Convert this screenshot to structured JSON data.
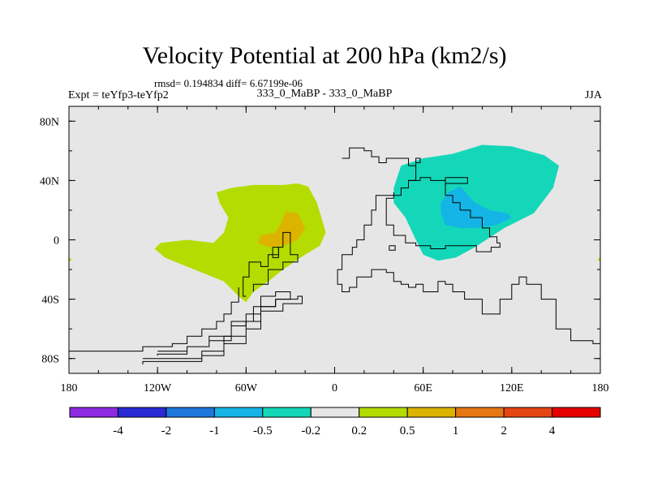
{
  "header": {
    "title": "Velocity Potential at 200 hPa (km2/s)",
    "stats": "rmsd= 0.194834 diff= 6.67199e-06",
    "expt": "Expt = teYfp3-teYfp2",
    "cases": "333_0_MaBP - 333_0_MaBP",
    "season": "JJA"
  },
  "colors": {
    "background": "#ffffff",
    "map_fill": "#e6e6e6",
    "coast": "#000000"
  },
  "chart_data": {
    "type": "heatmap",
    "title": "Velocity Potential at 200 hPa (km2/s)",
    "xlim": [
      -180,
      180
    ],
    "ylim": [
      -90,
      90
    ],
    "x_ticks": [
      {
        "value": -180,
        "label": "180"
      },
      {
        "value": -120,
        "label": "120W"
      },
      {
        "value": -60,
        "label": "60W"
      },
      {
        "value": 0,
        "label": "0"
      },
      {
        "value": 60,
        "label": "60E"
      },
      {
        "value": 120,
        "label": "120E"
      },
      {
        "value": 180,
        "label": "180"
      }
    ],
    "y_ticks": [
      {
        "value": 80,
        "label": "80N"
      },
      {
        "value": 40,
        "label": "40N"
      },
      {
        "value": 0,
        "label": "0"
      },
      {
        "value": -40,
        "label": "40S"
      },
      {
        "value": -80,
        "label": "80S"
      }
    ],
    "colorbar": {
      "colors": [
        "#8e2be2",
        "#2a2ad6",
        "#1e78dc",
        "#14b4e6",
        "#14d7b9",
        "#e6e6e6",
        "#b4dc00",
        "#dcb400",
        "#e67814",
        "#e64614",
        "#e60000"
      ],
      "levels": [
        "-4",
        "-2",
        "-1",
        "-0.5",
        "-0.2",
        "0.2",
        "0.5",
        "1",
        "2",
        "4"
      ]
    },
    "regions": [
      {
        "name": "positive-0.2-0.5-western-hemisphere",
        "level_range": [
          0.2,
          0.5
        ],
        "color": "#b4dc00",
        "lonlat": [
          [
            -80,
            32
          ],
          [
            -70,
            35
          ],
          [
            -55,
            37
          ],
          [
            -35,
            37
          ],
          [
            -25,
            38
          ],
          [
            -18,
            36
          ],
          [
            -12,
            25
          ],
          [
            -6,
            5
          ],
          [
            -10,
            -4
          ],
          [
            -20,
            -10
          ],
          [
            -35,
            -20
          ],
          [
            -45,
            -28
          ],
          [
            -55,
            -35
          ],
          [
            -60,
            -42
          ],
          [
            -65,
            -38
          ],
          [
            -75,
            -28
          ],
          [
            -95,
            -20
          ],
          [
            -115,
            -12
          ],
          [
            -122,
            -6
          ],
          [
            -118,
            -2
          ],
          [
            -100,
            0
          ],
          [
            -82,
            -2
          ],
          [
            -75,
            5
          ],
          [
            -72,
            15
          ],
          [
            -78,
            25
          ]
        ]
      },
      {
        "name": "positive-0.5-1-western-hemisphere",
        "level_range": [
          0.5,
          1
        ],
        "color": "#dcb400",
        "lonlat": [
          [
            -33,
            19
          ],
          [
            -25,
            18
          ],
          [
            -20,
            8
          ],
          [
            -25,
            0
          ],
          [
            -35,
            -4
          ],
          [
            -45,
            -5
          ],
          [
            -52,
            -2
          ],
          [
            -50,
            3
          ],
          [
            -40,
            5
          ],
          [
            -36,
            12
          ]
        ]
      },
      {
        "name": "negative-0.5-0.2-eastern-hemisphere",
        "level_range": [
          -0.5,
          -0.2
        ],
        "color": "#14d7b9",
        "lonlat": [
          [
            45,
            50
          ],
          [
            60,
            55
          ],
          [
            80,
            58
          ],
          [
            100,
            64
          ],
          [
            120,
            63
          ],
          [
            142,
            57
          ],
          [
            152,
            50
          ],
          [
            148,
            35
          ],
          [
            135,
            18
          ],
          [
            115,
            8
          ],
          [
            95,
            -5
          ],
          [
            82,
            -12
          ],
          [
            70,
            -14
          ],
          [
            60,
            -10
          ],
          [
            55,
            0
          ],
          [
            48,
            15
          ],
          [
            40,
            25
          ],
          [
            40,
            35
          ]
        ]
      },
      {
        "name": "negative-1-0.5-eastern-hemisphere",
        "level_range": [
          -1,
          -0.5
        ],
        "color": "#14b4e6",
        "lonlat": [
          [
            72,
            25
          ],
          [
            77,
            32
          ],
          [
            85,
            36
          ],
          [
            95,
            25
          ],
          [
            105,
            20
          ],
          [
            117,
            18
          ],
          [
            120,
            15
          ],
          [
            110,
            10
          ],
          [
            95,
            8
          ],
          [
            85,
            8
          ],
          [
            75,
            10
          ],
          [
            72,
            18
          ]
        ]
      },
      {
        "name": "edge-marker-west",
        "level_range": [
          0.2,
          0.5
        ],
        "color": "#b4dc00",
        "lonlat": [
          [
            -180,
            -12
          ],
          [
            -178,
            -13
          ],
          [
            -180,
            -15
          ]
        ]
      },
      {
        "name": "edge-marker-east",
        "level_range": [
          0.2,
          0.5
        ],
        "color": "#b4dc00",
        "lonlat": [
          [
            180,
            -12
          ],
          [
            178,
            -13
          ],
          [
            180,
            -15
          ]
        ]
      }
    ],
    "coastlines": [
      {
        "name": "coast-southern-west",
        "lonlat": [
          [
            -180,
            -75
          ],
          [
            -150,
            -75
          ],
          [
            -130,
            -72
          ],
          [
            -110,
            -70
          ],
          [
            -100,
            -65
          ],
          [
            -90,
            -60
          ],
          [
            -80,
            -55
          ],
          [
            -75,
            -50
          ],
          [
            -70,
            -42
          ],
          [
            -65,
            -32
          ]
        ]
      },
      {
        "name": "coast-southern-loop-1",
        "lonlat": [
          [
            -130,
            -80
          ],
          [
            -110,
            -80
          ],
          [
            -90,
            -78
          ],
          [
            -75,
            -70
          ],
          [
            -60,
            -60
          ],
          [
            -50,
            -45
          ],
          [
            -40,
            -40
          ],
          [
            -25,
            -38
          ],
          [
            -22,
            -43
          ],
          [
            -35,
            -48
          ],
          [
            -50,
            -55
          ],
          [
            -60,
            -65
          ],
          [
            -75,
            -75
          ],
          [
            -90,
            -82
          ],
          [
            -130,
            -84
          ]
        ]
      },
      {
        "name": "coast-southern-loop-2",
        "lonlat": [
          [
            -120,
            -75
          ],
          [
            -100,
            -72
          ],
          [
            -85,
            -68
          ],
          [
            -70,
            -58
          ],
          [
            -60,
            -50
          ],
          [
            -50,
            -38
          ],
          [
            -40,
            -35
          ],
          [
            -30,
            -40
          ],
          [
            -40,
            -45
          ],
          [
            -55,
            -55
          ],
          [
            -70,
            -65
          ],
          [
            -85,
            -72
          ],
          [
            -100,
            -77
          ],
          [
            -120,
            -78
          ]
        ]
      },
      {
        "name": "coast-western-hemisphere-block",
        "lonlat": [
          [
            -60,
            -38
          ],
          [
            -62,
            -25
          ],
          [
            -58,
            -15
          ],
          [
            -50,
            -18
          ],
          [
            -45,
            -10
          ],
          [
            -38,
            -5
          ],
          [
            -35,
            5
          ],
          [
            -30,
            -10
          ],
          [
            -25,
            -15
          ],
          [
            -35,
            -20
          ],
          [
            -45,
            -30
          ],
          [
            -55,
            -35
          ]
        ]
      },
      {
        "name": "coast-small-block",
        "lonlat": [
          [
            -42,
            -5
          ],
          [
            -38,
            -5
          ],
          [
            -38,
            -12
          ],
          [
            -42,
            -12
          ],
          [
            -42,
            -5
          ]
        ]
      },
      {
        "name": "coast-eurasia-africa",
        "lonlat": [
          [
            5,
            55
          ],
          [
            10,
            62
          ],
          [
            20,
            60
          ],
          [
            25,
            56
          ],
          [
            30,
            52
          ],
          [
            35,
            55
          ],
          [
            50,
            50
          ],
          [
            55,
            55
          ],
          [
            58,
            52
          ],
          [
            55,
            40
          ],
          [
            50,
            35
          ],
          [
            45,
            30
          ],
          [
            40,
            30
          ],
          [
            32,
            30
          ],
          [
            28,
            20
          ],
          [
            25,
            10
          ],
          [
            20,
            0
          ],
          [
            15,
            -5
          ],
          [
            12,
            -10
          ],
          [
            5,
            -20
          ],
          [
            2,
            -30
          ],
          [
            5,
            -35
          ],
          [
            10,
            -32
          ],
          [
            15,
            -25
          ],
          [
            25,
            -20
          ],
          [
            35,
            -22
          ],
          [
            40,
            -28
          ],
          [
            45,
            -30
          ],
          [
            50,
            -32
          ],
          [
            55,
            -30
          ],
          [
            60,
            -35
          ],
          [
            65,
            -35
          ],
          [
            70,
            -28
          ],
          [
            75,
            -30
          ],
          [
            80,
            -35
          ],
          [
            88,
            -40
          ],
          [
            100,
            -50
          ],
          [
            112,
            -40
          ],
          [
            120,
            -30
          ],
          [
            125,
            -25
          ],
          [
            130,
            -30
          ],
          [
            140,
            -40
          ],
          [
            150,
            -60
          ],
          [
            160,
            -68
          ],
          [
            175,
            -70
          ],
          [
            180,
            -75
          ]
        ]
      },
      {
        "name": "coast-eurasia-interior",
        "lonlat": [
          [
            45,
            35
          ],
          [
            50,
            40
          ],
          [
            58,
            42
          ],
          [
            65,
            40
          ],
          [
            75,
            30
          ],
          [
            80,
            25
          ],
          [
            85,
            20
          ],
          [
            92,
            15
          ],
          [
            100,
            8
          ],
          [
            105,
            2
          ],
          [
            110,
            -2
          ],
          [
            112,
            -5
          ],
          [
            106,
            -8
          ],
          [
            96,
            -4
          ],
          [
            85,
            -4
          ],
          [
            75,
            -6
          ],
          [
            65,
            -4
          ],
          [
            55,
            -2
          ],
          [
            48,
            3
          ],
          [
            40,
            10
          ],
          [
            35,
            18
          ],
          [
            35,
            28
          ],
          [
            40,
            32
          ]
        ]
      },
      {
        "name": "coast-asia-inset",
        "lonlat": [
          [
            75,
            42
          ],
          [
            90,
            42
          ],
          [
            90,
            38
          ],
          [
            75,
            38
          ],
          [
            75,
            42
          ]
        ]
      },
      {
        "name": "coast-island-1",
        "lonlat": [
          [
            37,
            -4
          ],
          [
            41,
            -4
          ],
          [
            41,
            -7
          ],
          [
            37,
            -7
          ],
          [
            37,
            -4
          ]
        ]
      }
    ]
  }
}
